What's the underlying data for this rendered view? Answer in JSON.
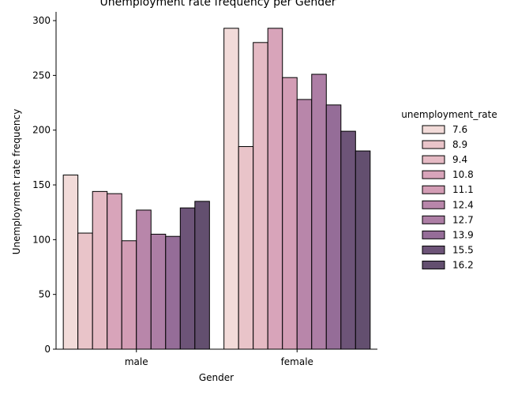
{
  "chart_data": {
    "type": "bar",
    "title": "Unemployment rate frequency per Gender",
    "xlabel": "Gender",
    "ylabel": "Unemployment rate frequency",
    "categories": [
      "male",
      "female"
    ],
    "ylim": [
      0,
      308
    ],
    "yticks": [
      0,
      50,
      100,
      150,
      200,
      250,
      300
    ],
    "grid": false,
    "legend": {
      "title": "unemployment_rate",
      "placement": "right"
    },
    "series": [
      {
        "name": "7.6",
        "color": "#f2dbd9",
        "values": [
          159,
          293
        ]
      },
      {
        "name": "8.9",
        "color": "#e9c4c9",
        "values": [
          106,
          185
        ]
      },
      {
        "name": "9.4",
        "color": "#e5bac4",
        "values": [
          144,
          280
        ]
      },
      {
        "name": "10.8",
        "color": "#d8a4ba",
        "values": [
          142,
          293
        ]
      },
      {
        "name": "11.1",
        "color": "#d39db5",
        "values": [
          99,
          248
        ]
      },
      {
        "name": "12.4",
        "color": "#b886aa",
        "values": [
          127,
          228
        ]
      },
      {
        "name": "12.7",
        "color": "#ad7ea5",
        "values": [
          105,
          251
        ]
      },
      {
        "name": "13.9",
        "color": "#956d98",
        "values": [
          103,
          223
        ]
      },
      {
        "name": "15.5",
        "color": "#6d5478",
        "values": [
          129,
          199
        ]
      },
      {
        "name": "16.2",
        "color": "#634f6f",
        "values": [
          135,
          181
        ]
      }
    ]
  }
}
